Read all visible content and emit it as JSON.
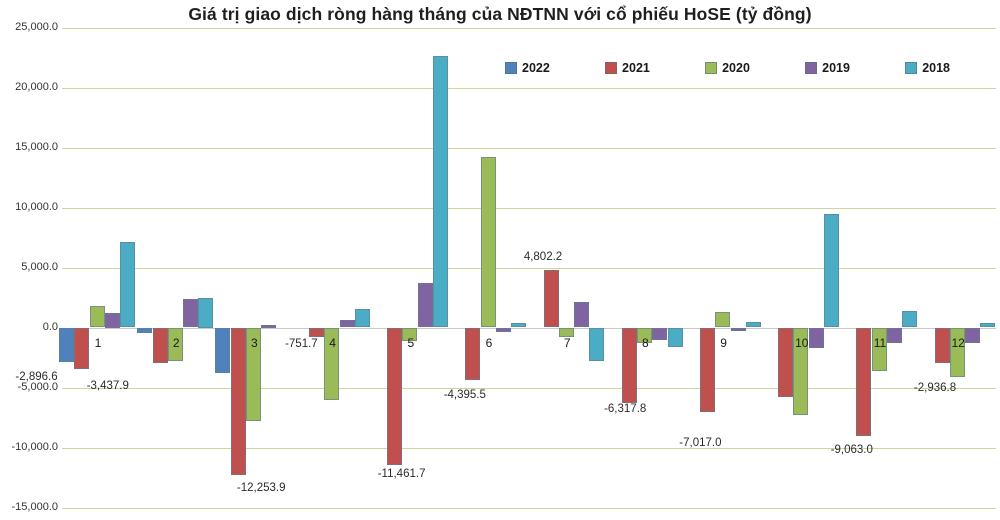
{
  "title": "Giá trị giao dịch ròng hàng tháng của NĐTNN với cổ phiếu HoSE (tỷ đồng)",
  "chart_data": {
    "type": "bar",
    "title": "Giá trị giao dịch ròng hàng tháng của NĐTNN với cổ phiếu HoSE (tỷ đồng)",
    "unit": "tỷ đồng",
    "categories": [
      "1",
      "2",
      "3",
      "4",
      "5",
      "6",
      "7",
      "8",
      "9",
      "10",
      "11",
      "12"
    ],
    "xlabel": "",
    "ylabel": "",
    "ylim": [
      -15000,
      25000
    ],
    "grid": true,
    "legend_position": "top-right",
    "gridline_color": "#d3d49c",
    "series": [
      {
        "name": "2022",
        "color": "#4F81BD",
        "values": [
          -2896.6,
          -450,
          -3800,
          null,
          null,
          null,
          null,
          null,
          null,
          null,
          null,
          null
        ]
      },
      {
        "name": "2021",
        "color": "#C0504D",
        "values": [
          -3437.9,
          -2950,
          -12253.9,
          -751.7,
          -11461.7,
          -4395.5,
          4802.2,
          -6317.8,
          -7017.0,
          -5770,
          -9063.0,
          -2936.8
        ]
      },
      {
        "name": "2020",
        "color": "#9BBB59",
        "values": [
          1800,
          -2800,
          -7800,
          -6050,
          -1100,
          14200,
          -750,
          -1300,
          1300,
          -7300,
          -3650,
          -4100
        ]
      },
      {
        "name": "2019",
        "color": "#8064A2",
        "values": [
          1250,
          2350,
          250,
          650,
          3700,
          -400,
          2150,
          -1000,
          -250,
          -1700,
          -1250,
          -1300
        ]
      },
      {
        "name": "2018",
        "color": "#4BACC6",
        "values": [
          7100,
          2500,
          0,
          1550,
          22600,
          350,
          -2750,
          -1650,
          420,
          9450,
          1350,
          350
        ]
      }
    ],
    "data_labels": [
      {
        "series": "2022",
        "month": 1,
        "text": "-2,896.6"
      },
      {
        "series": "2021",
        "month": 1,
        "text": "-3,437.9"
      },
      {
        "series": "2021",
        "month": 3,
        "text": "-12,253.9"
      },
      {
        "series": "2021",
        "month": 4,
        "text": "-751.7"
      },
      {
        "series": "2021",
        "month": 5,
        "text": "-11,461.7"
      },
      {
        "series": "2021",
        "month": 6,
        "text": "-4,395.5"
      },
      {
        "series": "2021",
        "month": 7,
        "text": "4,802.2"
      },
      {
        "series": "2021",
        "month": 8,
        "text": "-6,317.8"
      },
      {
        "series": "2021",
        "month": 9,
        "text": "-7,017.0"
      },
      {
        "series": "2021",
        "month": 11,
        "text": "-9,063.0"
      },
      {
        "series": "2021",
        "month": 12,
        "text": "-2,936.8"
      }
    ],
    "yticks": [
      {
        "label": "25,000.0",
        "value": 25000
      },
      {
        "label": "20,000.0",
        "value": 20000
      },
      {
        "label": "15,000.0",
        "value": 15000
      },
      {
        "label": "10,000.0",
        "value": 10000
      },
      {
        "label": "5,000.0",
        "value": 5000
      },
      {
        "label": "0.0",
        "value": 0
      },
      {
        "label": "-5,000.0",
        "value": -5000
      },
      {
        "label": "-10,000.0",
        "value": -10000
      },
      {
        "label": "-15,000.0",
        "value": -15000
      }
    ]
  }
}
